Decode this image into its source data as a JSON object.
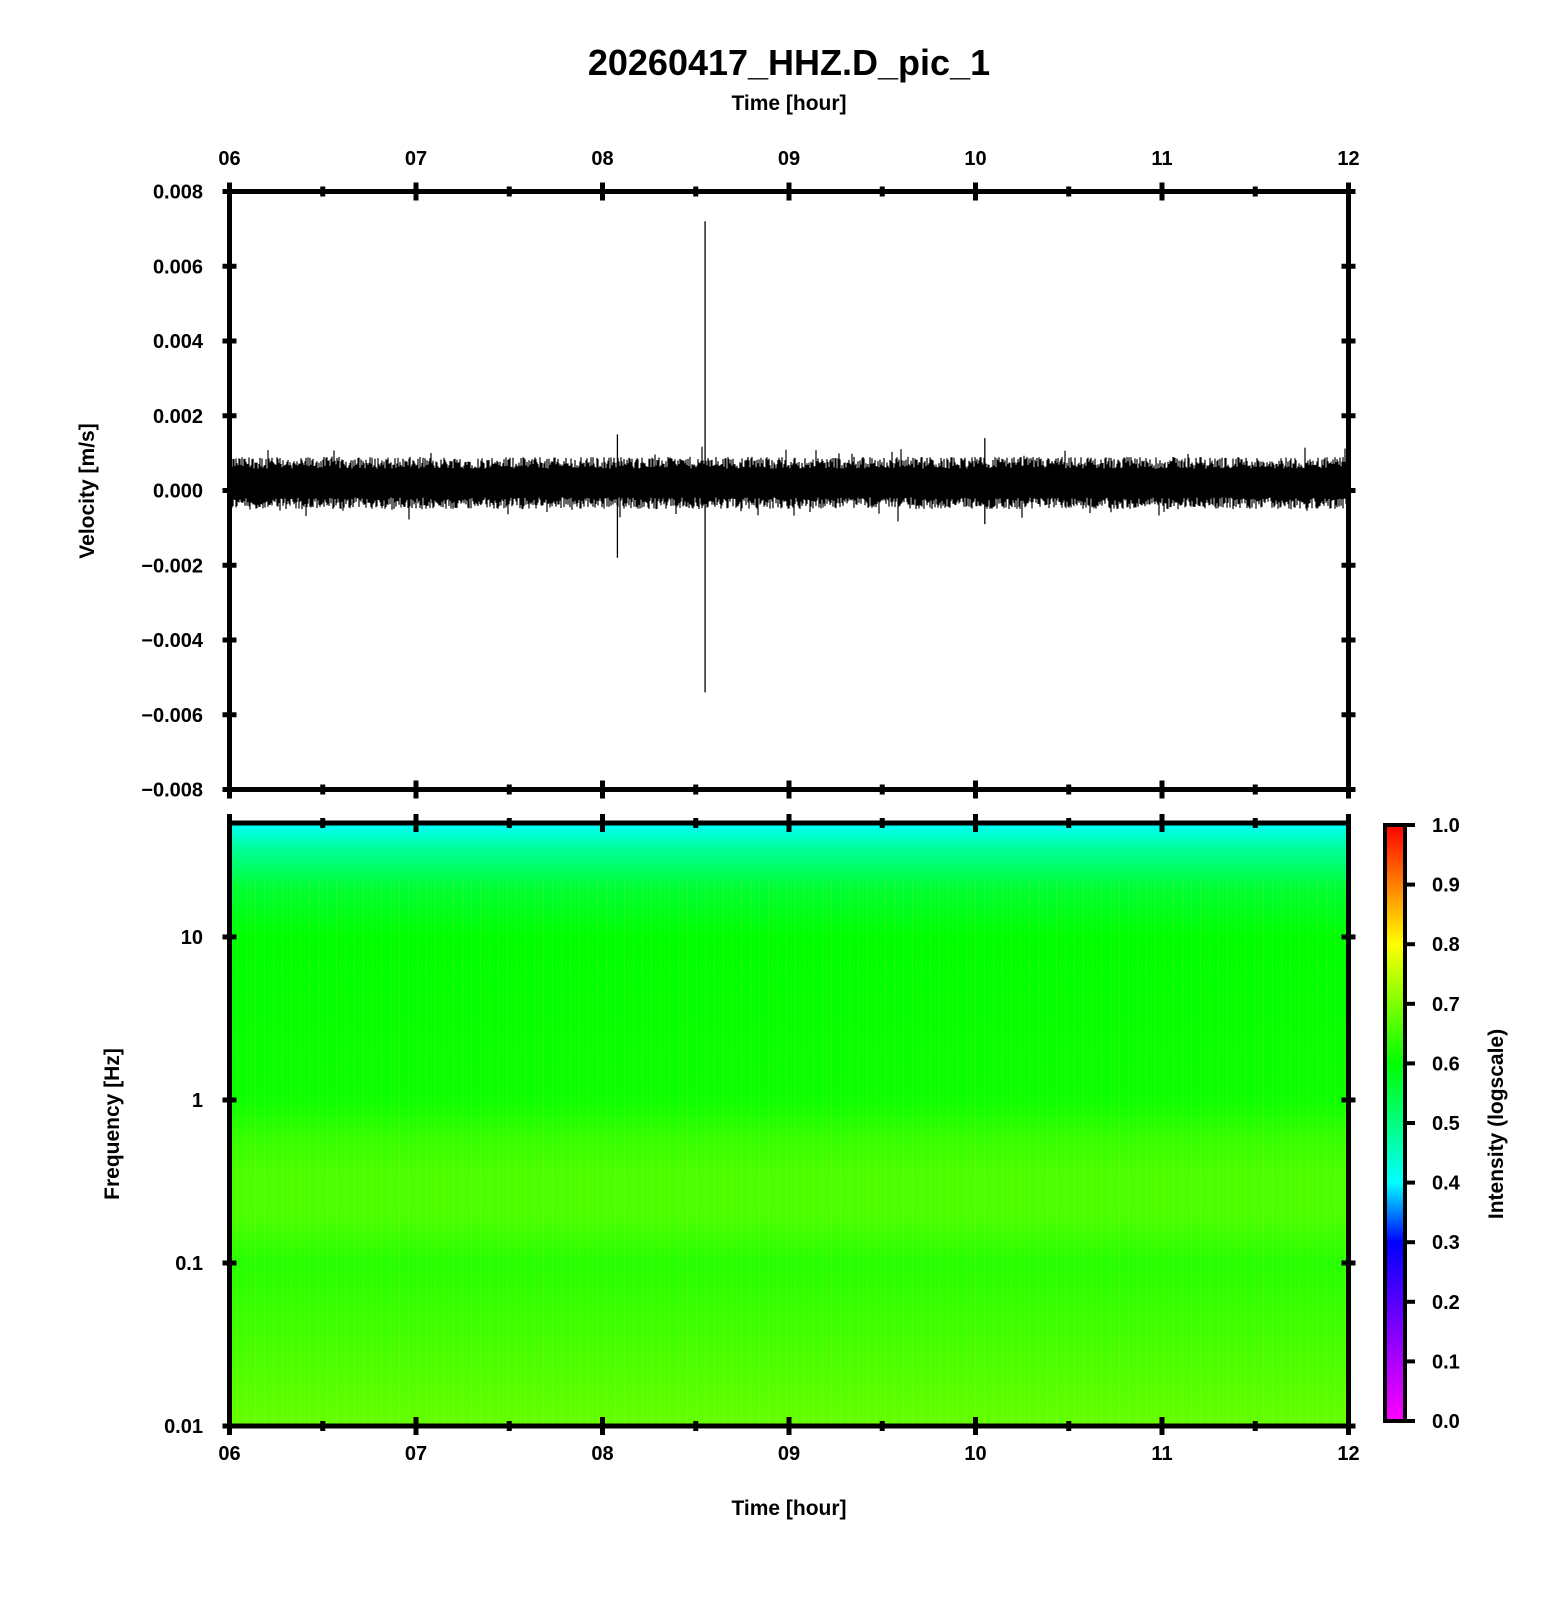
{
  "title": "20260417_HHZ.D_pic_1",
  "chart_data": [
    {
      "type": "line",
      "panel": "waveform",
      "xlabel": "Time [hour]",
      "ylabel": "Velocity [m/s]",
      "xlim": [
        6,
        12
      ],
      "ylim": [
        -0.008,
        0.008
      ],
      "x_ticks": [
        "06",
        "07",
        "08",
        "09",
        "10",
        "11",
        "12"
      ],
      "y_ticks": [
        "0.008",
        "0.006",
        "0.004",
        "0.002",
        "0.000",
        "−0.002",
        "−0.004",
        "−0.006",
        "−0.008"
      ],
      "y_tick_values": [
        0.008,
        0.006,
        0.004,
        0.002,
        0.0,
        -0.002,
        -0.004,
        -0.006,
        -0.008
      ],
      "noise_band": {
        "upper": 0.0009,
        "lower": -0.0005,
        "offset": 0.0002
      },
      "spikes": [
        {
          "x": 8.08,
          "max": 0.0015,
          "min": -0.0018
        },
        {
          "x": 8.55,
          "max": 0.0072,
          "min": -0.0054
        },
        {
          "x": 10.05,
          "max": 0.0014,
          "min": -0.0009
        }
      ]
    },
    {
      "type": "heatmap",
      "panel": "spectrogram",
      "xlabel": "Time [hour]",
      "ylabel": "Frequency [Hz]",
      "xlim": [
        6,
        12
      ],
      "ylim": [
        0.01,
        50
      ],
      "yscale": "log",
      "x_ticks": [
        "06",
        "07",
        "08",
        "09",
        "10",
        "11",
        "12"
      ],
      "y_ticks": [
        "10",
        "1",
        "0.1",
        "0.01"
      ],
      "y_tick_values": [
        10,
        1,
        0.1,
        0.01
      ],
      "intensity_profile": [
        {
          "freq": 50,
          "intensity": 0.4
        },
        {
          "freq": 35,
          "intensity": 0.48
        },
        {
          "freq": 20,
          "intensity": 0.56
        },
        {
          "freq": 10,
          "intensity": 0.6
        },
        {
          "freq": 1,
          "intensity": 0.61
        },
        {
          "freq": 0.6,
          "intensity": 0.64
        },
        {
          "freq": 0.35,
          "intensity": 0.66
        },
        {
          "freq": 0.2,
          "intensity": 0.66
        },
        {
          "freq": 0.1,
          "intensity": 0.63
        },
        {
          "freq": 0.01,
          "intensity": 0.68
        }
      ],
      "colorbar": {
        "label": "Intensity (logscale)",
        "ticks": [
          "1.0",
          "0.9",
          "0.8",
          "0.7",
          "0.6",
          "0.5",
          "0.4",
          "0.3",
          "0.2",
          "0.1",
          "0.0"
        ],
        "tick_values": [
          1.0,
          0.9,
          0.8,
          0.7,
          0.6,
          0.5,
          0.4,
          0.3,
          0.2,
          0.1,
          0.0
        ],
        "range": [
          0,
          1
        ],
        "colormap": "hsv rainbow (magenta-blue-cyan-green-yellow-red)"
      }
    }
  ]
}
